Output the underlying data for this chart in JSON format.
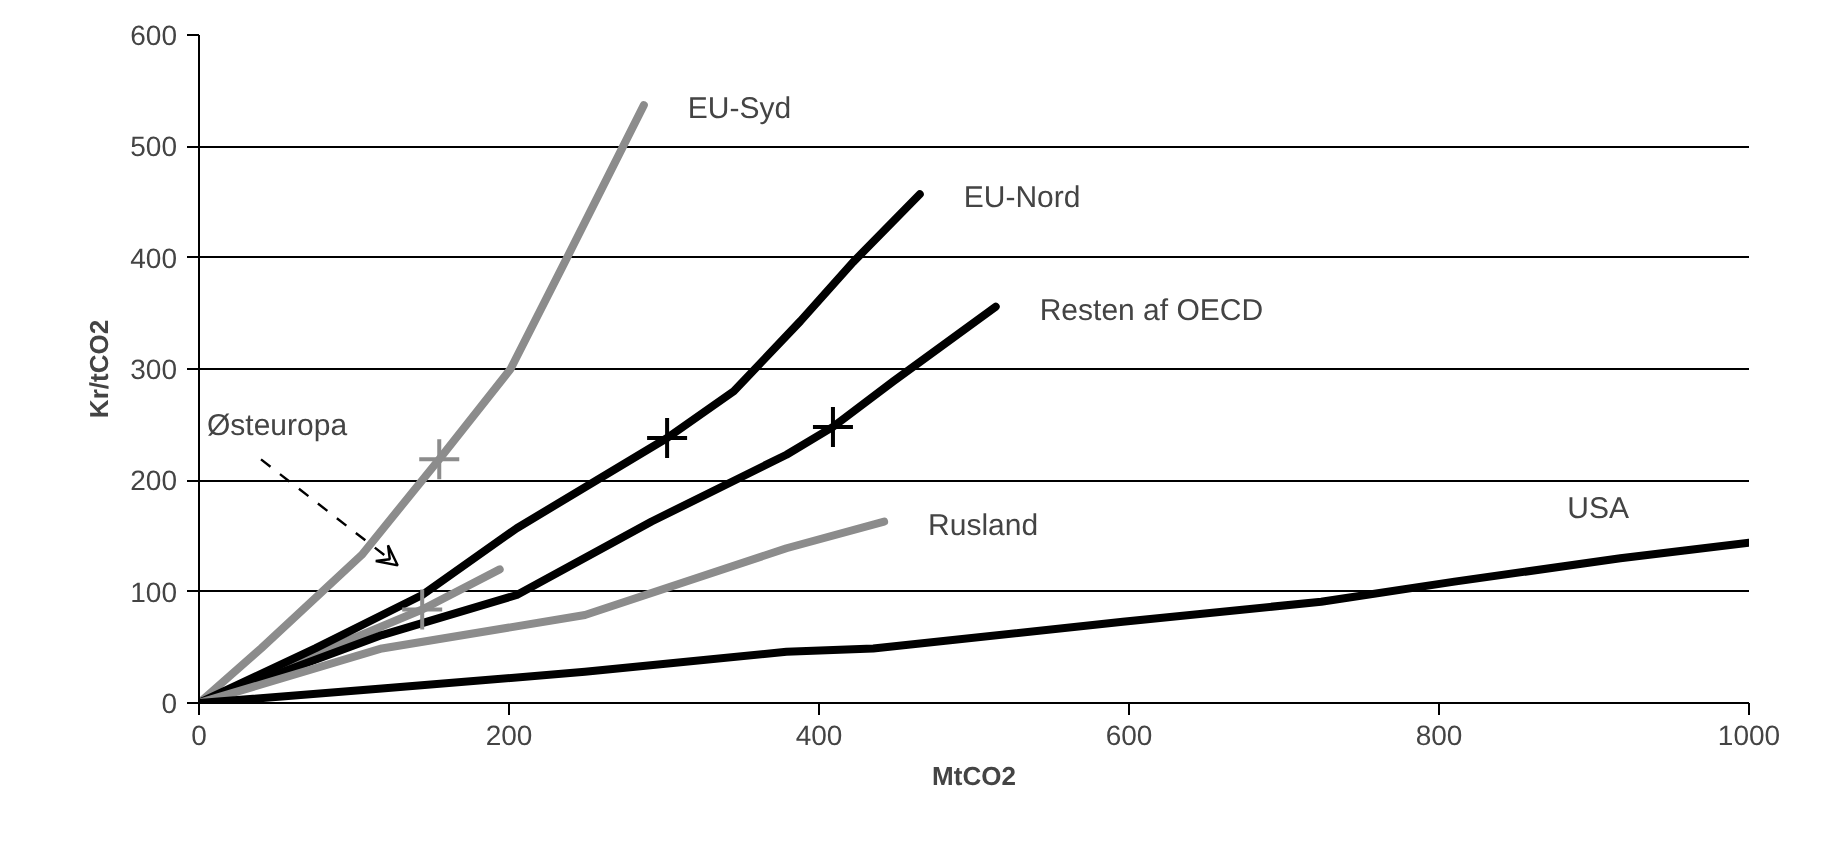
{
  "chart_data": {
    "type": "line",
    "xlabel": "MtCO2",
    "ylabel": "Kr/tCO2",
    "xlim": [
      0,
      1000
    ],
    "ylim": [
      0,
      600
    ],
    "xticks": [
      0,
      200,
      400,
      600,
      800,
      1000
    ],
    "yticks": [
      0,
      100,
      200,
      300,
      400,
      500,
      600
    ],
    "grid": "y",
    "line_style": "solid",
    "series": [
      {
        "name": "EU-Syd",
        "color": "#8c8c8c",
        "x": [
          0,
          40,
          105,
          155,
          201,
          236,
          287
        ],
        "values": [
          0,
          49,
          133,
          219,
          300,
          396,
          537
        ]
      },
      {
        "name": "Østeuropa",
        "color": "#8c8c8c",
        "x": [
          0,
          144,
          194
        ],
        "values": [
          0,
          84,
          120
        ]
      },
      {
        "name": "EU-Nord",
        "color": "#000000",
        "x": [
          0,
          75,
          144,
          205,
          302,
          345,
          388,
          422,
          465
        ],
        "values": [
          0,
          49,
          97,
          157,
          238,
          280,
          343,
          396,
          457
        ]
      },
      {
        "name": "Resten af OECD",
        "color": "#000000",
        "x": [
          0,
          118,
          205,
          292,
          379,
          409,
          448,
          514
        ],
        "values": [
          0,
          61,
          97,
          163,
          223,
          248,
          289,
          356
        ]
      },
      {
        "name": "Rusland",
        "color": "#8c8c8c",
        "x": [
          0,
          118,
          249,
          379,
          442
        ],
        "values": [
          0,
          49,
          79,
          139,
          163
        ]
      },
      {
        "name": "USA",
        "color": "#000000",
        "x": [
          0,
          118,
          249,
          379,
          435,
          596,
          724,
          810,
          917,
          1000
        ],
        "values": [
          0,
          13,
          28,
          46,
          49,
          73,
          91,
          109,
          130,
          144
        ]
      },
      {
        "type": "scatter",
        "marker": "cross",
        "x": [
          155,
          144,
          302,
          409
        ],
        "values": [
          219,
          84,
          238,
          248
        ],
        "colors": [
          "#8c8c8c",
          "#8c8c8c",
          "#000000",
          "#000000"
        ]
      }
    ]
  }
}
